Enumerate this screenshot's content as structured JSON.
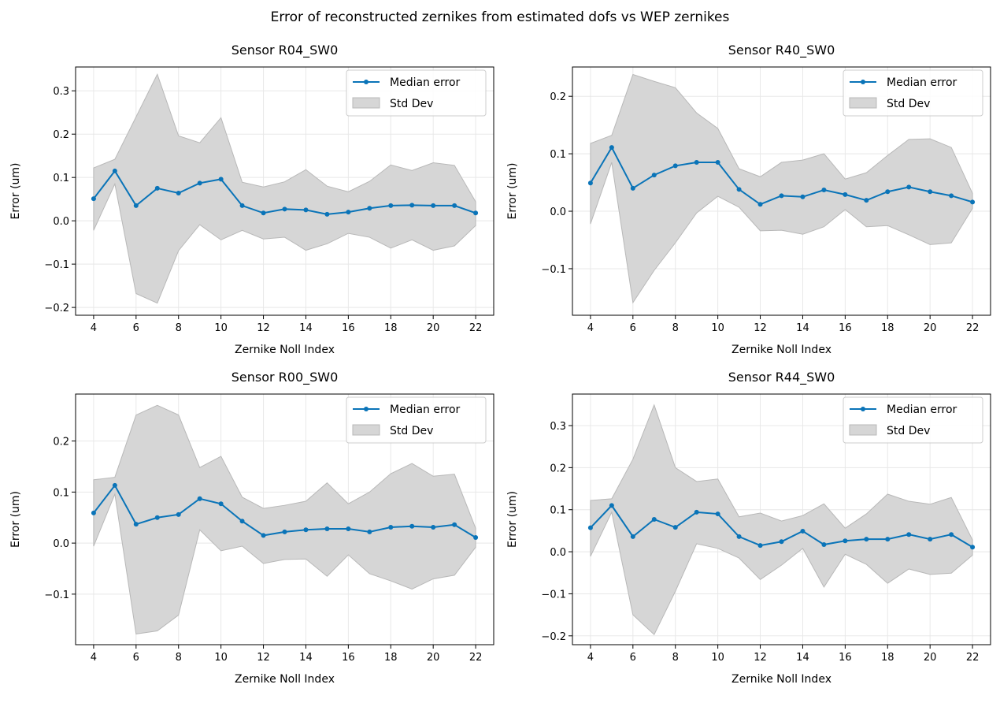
{
  "suptitle": "Error of reconstructed zernikes from estimated dofs vs WEP zernikes",
  "colors": {
    "median": "#0a74b8",
    "std_fill": "#d6d6d6",
    "std_edge": "#b8b8b8",
    "grid": "#e8e8e8"
  },
  "chart_data": [
    {
      "type": "line",
      "title": "Sensor R04_SW0",
      "xlabel": "Zernike Noll Index",
      "ylabel": "Error (um)",
      "xlim": [
        3.15,
        22.85
      ],
      "ylim": [
        -0.218,
        0.355
      ],
      "grid": true,
      "legend_placement": "top-right",
      "xticks": [
        "4",
        "6",
        "8",
        "10",
        "12",
        "14",
        "16",
        "18",
        "20",
        "22"
      ],
      "yticks": [
        {
          "v": -0.2,
          "label": "−0.2"
        },
        {
          "v": -0.1,
          "label": "−0.1"
        },
        {
          "v": 0.0,
          "label": "0.0"
        },
        {
          "v": 0.1,
          "label": "0.1"
        },
        {
          "v": 0.2,
          "label": "0.2"
        },
        {
          "v": 0.3,
          "label": "0.3"
        }
      ],
      "x": [
        4,
        5,
        6,
        7,
        8,
        9,
        10,
        11,
        12,
        13,
        14,
        15,
        16,
        17,
        18,
        19,
        20,
        21,
        22
      ],
      "series": [
        {
          "name": "Median error",
          "values": [
            0.051,
            0.115,
            0.035,
            0.075,
            0.064,
            0.087,
            0.096,
            0.035,
            0.018,
            0.027,
            0.025,
            0.015,
            0.02,
            0.029,
            0.035,
            0.036,
            0.035,
            0.035,
            0.018
          ]
        },
        {
          "name": "Std Dev",
          "upper": [
            0.122,
            0.142,
            0.24,
            0.338,
            0.196,
            0.18,
            0.238,
            0.089,
            0.078,
            0.09,
            0.118,
            0.08,
            0.067,
            0.091,
            0.129,
            0.116,
            0.134,
            0.128,
            0.044
          ],
          "lower": [
            -0.022,
            0.085,
            -0.168,
            -0.19,
            -0.069,
            -0.009,
            -0.044,
            -0.022,
            -0.042,
            -0.038,
            -0.068,
            -0.053,
            -0.029,
            -0.038,
            -0.063,
            -0.044,
            -0.068,
            -0.058,
            -0.011
          ]
        }
      ]
    },
    {
      "type": "line",
      "title": "Sensor R40_SW0",
      "xlabel": "Zernike Noll Index",
      "ylabel": "Error (um)",
      "xlim": [
        3.15,
        22.85
      ],
      "ylim": [
        -0.181,
        0.251
      ],
      "grid": true,
      "legend_placement": "top-right",
      "xticks": [
        "4",
        "6",
        "8",
        "10",
        "12",
        "14",
        "16",
        "18",
        "20",
        "22"
      ],
      "yticks": [
        {
          "v": -0.1,
          "label": "−0.1"
        },
        {
          "v": 0.0,
          "label": "0.0"
        },
        {
          "v": 0.1,
          "label": "0.1"
        },
        {
          "v": 0.2,
          "label": "0.2"
        }
      ],
      "x": [
        4,
        5,
        6,
        7,
        8,
        9,
        10,
        11,
        12,
        13,
        14,
        15,
        16,
        17,
        18,
        19,
        20,
        21,
        22
      ],
      "series": [
        {
          "name": "Median error",
          "values": [
            0.049,
            0.111,
            0.04,
            0.063,
            0.079,
            0.085,
            0.085,
            0.038,
            0.012,
            0.027,
            0.025,
            0.037,
            0.029,
            0.019,
            0.034,
            0.042,
            0.034,
            0.027,
            0.016
          ]
        },
        {
          "name": "Std Dev",
          "upper": [
            0.118,
            0.132,
            0.238,
            0.226,
            0.215,
            0.171,
            0.144,
            0.074,
            0.06,
            0.085,
            0.089,
            0.1,
            0.056,
            0.067,
            0.097,
            0.125,
            0.126,
            0.111,
            0.031
          ],
          "lower": [
            -0.022,
            0.085,
            -0.159,
            -0.103,
            -0.055,
            -0.003,
            0.026,
            0.007,
            -0.034,
            -0.033,
            -0.04,
            -0.027,
            0.003,
            -0.027,
            -0.025,
            -0.041,
            -0.058,
            -0.055,
            0.005
          ]
        }
      ]
    },
    {
      "type": "line",
      "title": "Sensor R00_SW0",
      "xlabel": "Zernike Noll Index",
      "ylabel": "Error (um)",
      "xlim": [
        3.15,
        22.85
      ],
      "ylim": [
        -0.199,
        0.292
      ],
      "grid": true,
      "legend_placement": "top-right",
      "xticks": [
        "4",
        "6",
        "8",
        "10",
        "12",
        "14",
        "16",
        "18",
        "20",
        "22"
      ],
      "yticks": [
        {
          "v": -0.1,
          "label": "−0.1"
        },
        {
          "v": 0.0,
          "label": "0.0"
        },
        {
          "v": 0.1,
          "label": "0.1"
        },
        {
          "v": 0.2,
          "label": "0.2"
        }
      ],
      "x": [
        4,
        5,
        6,
        7,
        8,
        9,
        10,
        11,
        12,
        13,
        14,
        15,
        16,
        17,
        18,
        19,
        20,
        21,
        22
      ],
      "series": [
        {
          "name": "Median error",
          "values": [
            0.059,
            0.113,
            0.037,
            0.05,
            0.056,
            0.087,
            0.077,
            0.043,
            0.015,
            0.022,
            0.026,
            0.028,
            0.028,
            0.022,
            0.031,
            0.033,
            0.031,
            0.036,
            0.011
          ]
        },
        {
          "name": "Std Dev",
          "upper": [
            0.124,
            0.129,
            0.251,
            0.27,
            0.251,
            0.148,
            0.17,
            0.09,
            0.068,
            0.074,
            0.082,
            0.118,
            0.077,
            0.1,
            0.136,
            0.156,
            0.131,
            0.135,
            0.029
          ],
          "lower": [
            -0.006,
            0.096,
            -0.178,
            -0.172,
            -0.141,
            0.026,
            -0.015,
            -0.006,
            -0.04,
            -0.032,
            -0.031,
            -0.065,
            -0.023,
            -0.06,
            -0.074,
            -0.09,
            -0.07,
            -0.063,
            -0.008
          ]
        }
      ]
    },
    {
      "type": "line",
      "title": "Sensor R44_SW0",
      "xlabel": "Zernike Noll Index",
      "ylabel": "Error (um)",
      "xlim": [
        3.15,
        22.85
      ],
      "ylim": [
        -0.221,
        0.375
      ],
      "grid": true,
      "legend_placement": "top-right",
      "xticks": [
        "4",
        "6",
        "8",
        "10",
        "12",
        "14",
        "16",
        "18",
        "20",
        "22"
      ],
      "yticks": [
        {
          "v": -0.2,
          "label": "−0.2"
        },
        {
          "v": -0.1,
          "label": "−0.1"
        },
        {
          "v": 0.0,
          "label": "0.0"
        },
        {
          "v": 0.1,
          "label": "0.1"
        },
        {
          "v": 0.2,
          "label": "0.2"
        },
        {
          "v": 0.3,
          "label": "0.3"
        }
      ],
      "x": [
        4,
        5,
        6,
        7,
        8,
        9,
        10,
        11,
        12,
        13,
        14,
        15,
        16,
        17,
        18,
        19,
        20,
        21,
        22
      ],
      "series": [
        {
          "name": "Median error",
          "values": [
            0.057,
            0.11,
            0.036,
            0.077,
            0.058,
            0.094,
            0.09,
            0.036,
            0.015,
            0.024,
            0.049,
            0.017,
            0.026,
            0.03,
            0.03,
            0.041,
            0.03,
            0.041,
            0.011
          ]
        },
        {
          "name": "Std Dev",
          "upper": [
            0.122,
            0.126,
            0.22,
            0.349,
            0.2,
            0.167,
            0.173,
            0.083,
            0.092,
            0.073,
            0.086,
            0.114,
            0.056,
            0.09,
            0.137,
            0.12,
            0.113,
            0.129,
            0.028
          ],
          "lower": [
            -0.011,
            0.094,
            -0.15,
            -0.197,
            -0.094,
            0.019,
            0.008,
            -0.015,
            -0.066,
            -0.032,
            0.008,
            -0.084,
            -0.006,
            -0.03,
            -0.075,
            -0.041,
            -0.054,
            -0.051,
            -0.008
          ]
        }
      ]
    }
  ]
}
